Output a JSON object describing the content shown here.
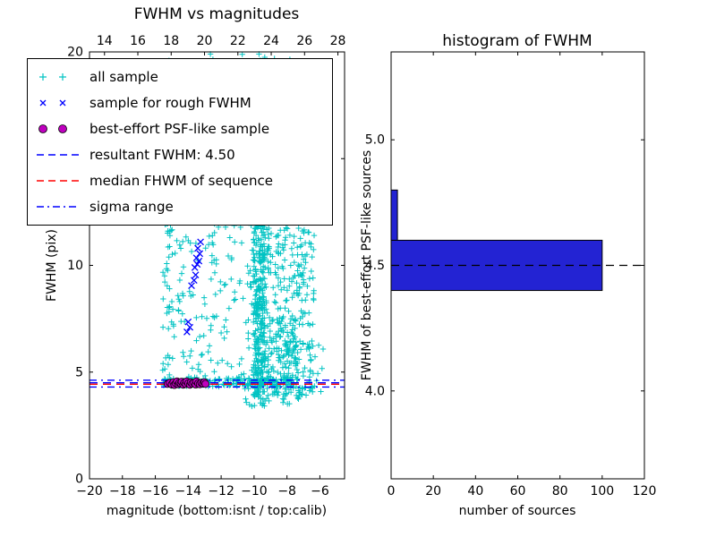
{
  "window": {
    "background": "#ffffff"
  },
  "colors": {
    "all_sample": "#00c3c3",
    "rough_fwhm": "#0000ff",
    "psf_like": "#bf00bf",
    "resultant_line": "#0000ff",
    "median_line": "#ff0000",
    "sigma_line": "#0000ff",
    "hist_bar": "#2323d3",
    "reference_dash": "#000000",
    "axes": "#000000"
  },
  "chart_data": [
    {
      "type": "scatter",
      "title": "FWHM vs magnitudes",
      "xlabel": "magnitude (bottom:isnt / top:calib)",
      "ylabel": "FWHM (pix)",
      "xlim": [
        -20,
        -4.5
      ],
      "ylim": [
        0,
        20
      ],
      "x_ticks": [
        -20,
        -18,
        -16,
        -14,
        -12,
        -10,
        -8,
        -6
      ],
      "y_ticks": [
        0,
        5,
        10,
        15,
        20
      ],
      "top_axis": {
        "xlim": [
          13.1,
          28.4
        ],
        "ticks": [
          14,
          16,
          18,
          20,
          22,
          24,
          26,
          28
        ]
      },
      "grid": false,
      "series": [
        {
          "name": "all sample",
          "marker": "plus",
          "color": "#00c3c3",
          "clusters": [
            {
              "x": [
                -10.05,
                -9.35
              ],
              "y": [
                3.9,
                12.2
              ],
              "n": 300
            },
            {
              "x": [
                -9.4,
                -6.3
              ],
              "y": [
                3.9,
                11.8
              ],
              "n": 250
            },
            {
              "x": [
                -9.7,
                -7.3
              ],
              "y": [
                4.2,
                7.6
              ],
              "n": 120
            },
            {
              "x": [
                -12.4,
                -10.05
              ],
              "y": [
                4.2,
                12.0
              ],
              "n": 60
            },
            {
              "x": [
                -15.6,
                -12.4
              ],
              "y": [
                4.3,
                12.4
              ],
              "n": 110
            },
            {
              "x": [
                -15.45,
                -15.1
              ],
              "y": [
                4.3,
                19.8
              ],
              "n": 60
            },
            {
              "x": [
                -15.6,
                -7.4
              ],
              "y": [
                4.32,
                4.72
              ],
              "n": 150
            },
            {
              "x": [
                -10.6,
                -7.0
              ],
              "y": [
                3.4,
                4.35
              ],
              "n": 50
            },
            {
              "x": [
                -13.4,
                -7.8
              ],
              "y": [
                12.2,
                19.9
              ],
              "n": 45
            },
            {
              "x": [
                -6.9,
                -5.8
              ],
              "y": [
                4.0,
                6.3
              ],
              "n": 12
            }
          ],
          "extra_points": [
            [
              -12.65,
              19.9
            ],
            [
              -12.5,
              19.65
            ],
            [
              -9.7,
              19.9
            ],
            [
              -9.62,
              19.6
            ],
            [
              -6.35,
              11.4
            ],
            [
              -6.6,
              5.8
            ],
            [
              -7.25,
              13.0
            ],
            [
              -6.5,
              4.3
            ],
            [
              -6.2,
              4.6
            ]
          ]
        },
        {
          "name": "sample for rough FWHM",
          "marker": "x",
          "color": "#0000ff",
          "points": [
            [
              -13.8,
              9.05
            ],
            [
              -13.65,
              9.3
            ],
            [
              -13.55,
              9.55
            ],
            [
              -13.6,
              9.9
            ],
            [
              -13.45,
              10.05
            ],
            [
              -13.5,
              10.35
            ],
            [
              -13.35,
              10.2
            ],
            [
              -13.3,
              10.55
            ],
            [
              -13.42,
              10.8
            ],
            [
              -13.25,
              11.1
            ],
            [
              -14.0,
              7.35
            ],
            [
              -13.9,
              7.1
            ],
            [
              -14.08,
              6.88
            ]
          ]
        },
        {
          "name": "best-effort PSF-like sample",
          "marker": "circle",
          "color": "#bf00bf",
          "points": [
            [
              -15.25,
              4.45
            ],
            [
              -15.12,
              4.5
            ],
            [
              -15.0,
              4.42
            ],
            [
              -14.9,
              4.53
            ],
            [
              -14.84,
              4.4
            ],
            [
              -14.75,
              4.48
            ],
            [
              -14.68,
              4.56
            ],
            [
              -14.6,
              4.43
            ],
            [
              -14.54,
              4.5
            ],
            [
              -14.45,
              4.46
            ],
            [
              -14.4,
              4.55
            ],
            [
              -14.3,
              4.41
            ],
            [
              -14.24,
              4.5
            ],
            [
              -14.15,
              4.44
            ],
            [
              -14.1,
              4.56
            ],
            [
              -14.0,
              4.47
            ],
            [
              -13.9,
              4.41
            ],
            [
              -13.84,
              4.52
            ],
            [
              -13.75,
              4.46
            ],
            [
              -13.65,
              4.5
            ],
            [
              -13.55,
              4.42
            ],
            [
              -13.5,
              4.56
            ],
            [
              -13.4,
              4.47
            ],
            [
              -13.3,
              4.43
            ],
            [
              -13.2,
              4.5
            ],
            [
              -13.1,
              4.46
            ],
            [
              -13.02,
              4.53
            ],
            [
              -12.95,
              4.45
            ]
          ]
        }
      ],
      "lines": [
        {
          "name": "resultant-fwhm-line",
          "y": 4.5,
          "color": "#0000ff",
          "style": "dashed"
        },
        {
          "name": "median-fwhm-line",
          "y": 4.43,
          "color": "#ff0000",
          "style": "dashed"
        },
        {
          "name": "sigma-range-low",
          "y": 4.3,
          "color": "#0000ff",
          "style": "dashdot"
        },
        {
          "name": "sigma-range-high",
          "y": 4.62,
          "color": "#0000ff",
          "style": "dashdot"
        }
      ],
      "legend": {
        "entries": [
          {
            "marker": "plus",
            "color": "#00c3c3",
            "label": "all sample"
          },
          {
            "marker": "x",
            "color": "#0000ff",
            "label": "sample for rough FWHM"
          },
          {
            "marker": "circle",
            "color": "#bf00bf",
            "label": "best-effort PSF-like sample"
          },
          {
            "marker": "line-dashed",
            "color": "#0000ff",
            "label": "resultant FWHM: 4.50"
          },
          {
            "marker": "line-dashed",
            "color": "#ff0000",
            "label": "median FHWM of sequence"
          },
          {
            "marker": "line-dashdot",
            "color": "#0000ff",
            "label": "sigma range"
          }
        ]
      }
    },
    {
      "type": "bar",
      "orientation": "horizontal",
      "title": "histogram of FWHM",
      "xlabel": "number of sources",
      "ylabel": "FWHM of best-effort PSF-like sources",
      "xlim": [
        0,
        120
      ],
      "ylim": [
        3.65,
        5.35
      ],
      "x_ticks": [
        0,
        20,
        40,
        60,
        80,
        100,
        120
      ],
      "y_ticks": [
        4.0,
        4.5,
        5.0
      ],
      "y_tick_labels": [
        "4.0",
        "4.5",
        "5.0"
      ],
      "bar_color": "#2323d3",
      "bins": [
        {
          "from": 4.4,
          "to": 4.6,
          "count": 100
        },
        {
          "from": 4.6,
          "to": 4.8,
          "count": 3
        }
      ],
      "reference_line": {
        "y": 4.5,
        "color": "#000000",
        "style": "dashed"
      }
    }
  ]
}
